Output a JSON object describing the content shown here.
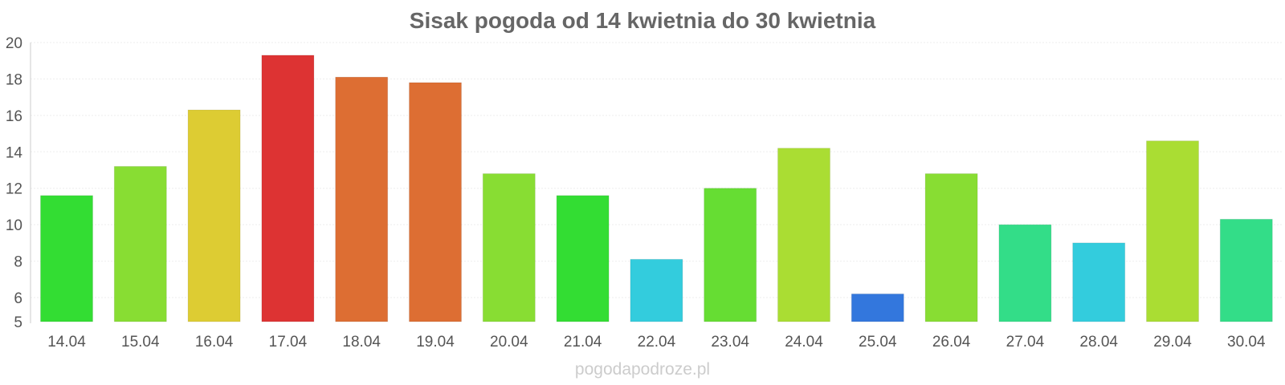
{
  "chart_data": {
    "type": "bar",
    "title": "Sisak pogoda od 14 kwietnia do 30 kwietnia",
    "categories": [
      "14.04",
      "15.04",
      "16.04",
      "17.04",
      "18.04",
      "19.04",
      "20.04",
      "21.04",
      "22.04",
      "23.04",
      "24.04",
      "25.04",
      "26.04",
      "27.04",
      "28.04",
      "29.04",
      "30.04"
    ],
    "values": [
      11.6,
      13.2,
      16.3,
      19.3,
      18.1,
      17.8,
      12.8,
      11.6,
      8.1,
      12.0,
      14.2,
      6.2,
      12.8,
      10.0,
      9.0,
      14.6,
      10.3
    ],
    "colors": [
      "#33dd33",
      "#88dd33",
      "#ddcc33",
      "#dd3333",
      "#dd6e33",
      "#dd6e33",
      "#88dd33",
      "#33dd33",
      "#33ccdd",
      "#66dd33",
      "#aadd33",
      "#3377dd",
      "#88dd33",
      "#33dd88",
      "#33ccdd",
      "#aadd33",
      "#33dd88"
    ],
    "yticks": [
      5,
      6,
      8,
      10,
      12,
      14,
      16,
      18,
      20
    ],
    "ylim": [
      5,
      20
    ],
    "grid": true,
    "xlabel": "",
    "ylabel": ""
  },
  "watermark": "pogodapodroze.pl"
}
